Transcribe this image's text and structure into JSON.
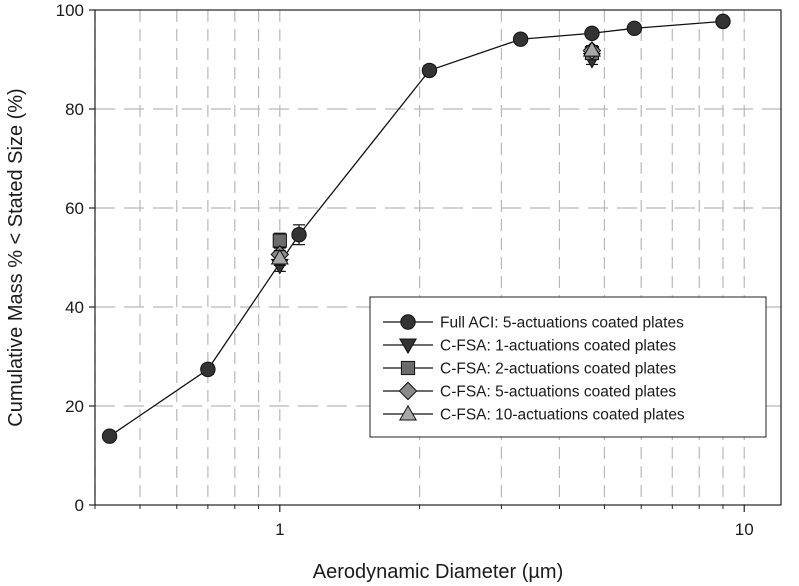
{
  "chart_data": {
    "type": "scatter",
    "xlabel": "Aerodynamic Diameter (µm)",
    "ylabel": "Cumulative Mass % < Stated Size (%)",
    "xscale": "log",
    "xlim": [
      0.4,
      12
    ],
    "ylim": [
      0,
      100
    ],
    "x_ticks": [
      {
        "value": 1,
        "label": "1"
      },
      {
        "value": 10,
        "label": "10"
      }
    ],
    "y_ticks": [
      {
        "value": 0,
        "label": "0"
      },
      {
        "value": 20,
        "label": "20"
      },
      {
        "value": 40,
        "label": "40"
      },
      {
        "value": 60,
        "label": "60"
      },
      {
        "value": 80,
        "label": "80"
      },
      {
        "value": 100,
        "label": "100"
      }
    ],
    "grid": true,
    "legend_position": "bottom-right",
    "series": [
      {
        "name": "Full ACI: 5-actuations coated plates",
        "marker": "circle",
        "color": "#333333",
        "line": true,
        "points": [
          {
            "x": 0.43,
            "y": 13.9,
            "err": 0.6
          },
          {
            "x": 0.7,
            "y": 27.4,
            "err": 1.0
          },
          {
            "x": 1.1,
            "y": 54.6,
            "err": 2.0
          },
          {
            "x": 2.1,
            "y": 87.8,
            "err": 1.0
          },
          {
            "x": 3.3,
            "y": 94.1,
            "err": 0.6
          },
          {
            "x": 4.7,
            "y": 95.3,
            "err": 0.6
          },
          {
            "x": 5.8,
            "y": 96.3,
            "err": 0.5
          },
          {
            "x": 9.0,
            "y": 97.7,
            "err": 0.4
          }
        ]
      },
      {
        "name": "C-FSA: 1-actuations coated plates",
        "marker": "triangle-down",
        "color": "#333333",
        "line": false,
        "points": [
          {
            "x": 1.0,
            "y": 48.4,
            "err": 1.2
          },
          {
            "x": 4.7,
            "y": 90.0,
            "err": 1.0
          }
        ]
      },
      {
        "name": "C-FSA: 2-actuations coated plates",
        "marker": "square",
        "color": "#6b6b6b",
        "line": false,
        "points": [
          {
            "x": 1.0,
            "y": 53.4,
            "err": 1.5
          },
          {
            "x": 4.7,
            "y": 91.3,
            "err": 1.0
          }
        ]
      },
      {
        "name": "C-FSA: 5-actuations coated plates",
        "marker": "diamond",
        "color": "#8a8a8a",
        "line": false,
        "points": [
          {
            "x": 1.0,
            "y": 50.6,
            "err": 1.5
          },
          {
            "x": 4.7,
            "y": 91.8,
            "err": 0.8
          }
        ]
      },
      {
        "name": "C-FSA: 10-actuations coated plates",
        "marker": "triangle-up",
        "color": "#a8a8a8",
        "line": false,
        "points": [
          {
            "x": 1.0,
            "y": 49.9,
            "err": 1.5
          },
          {
            "x": 4.7,
            "y": 91.9,
            "err": 0.9
          }
        ]
      }
    ]
  }
}
